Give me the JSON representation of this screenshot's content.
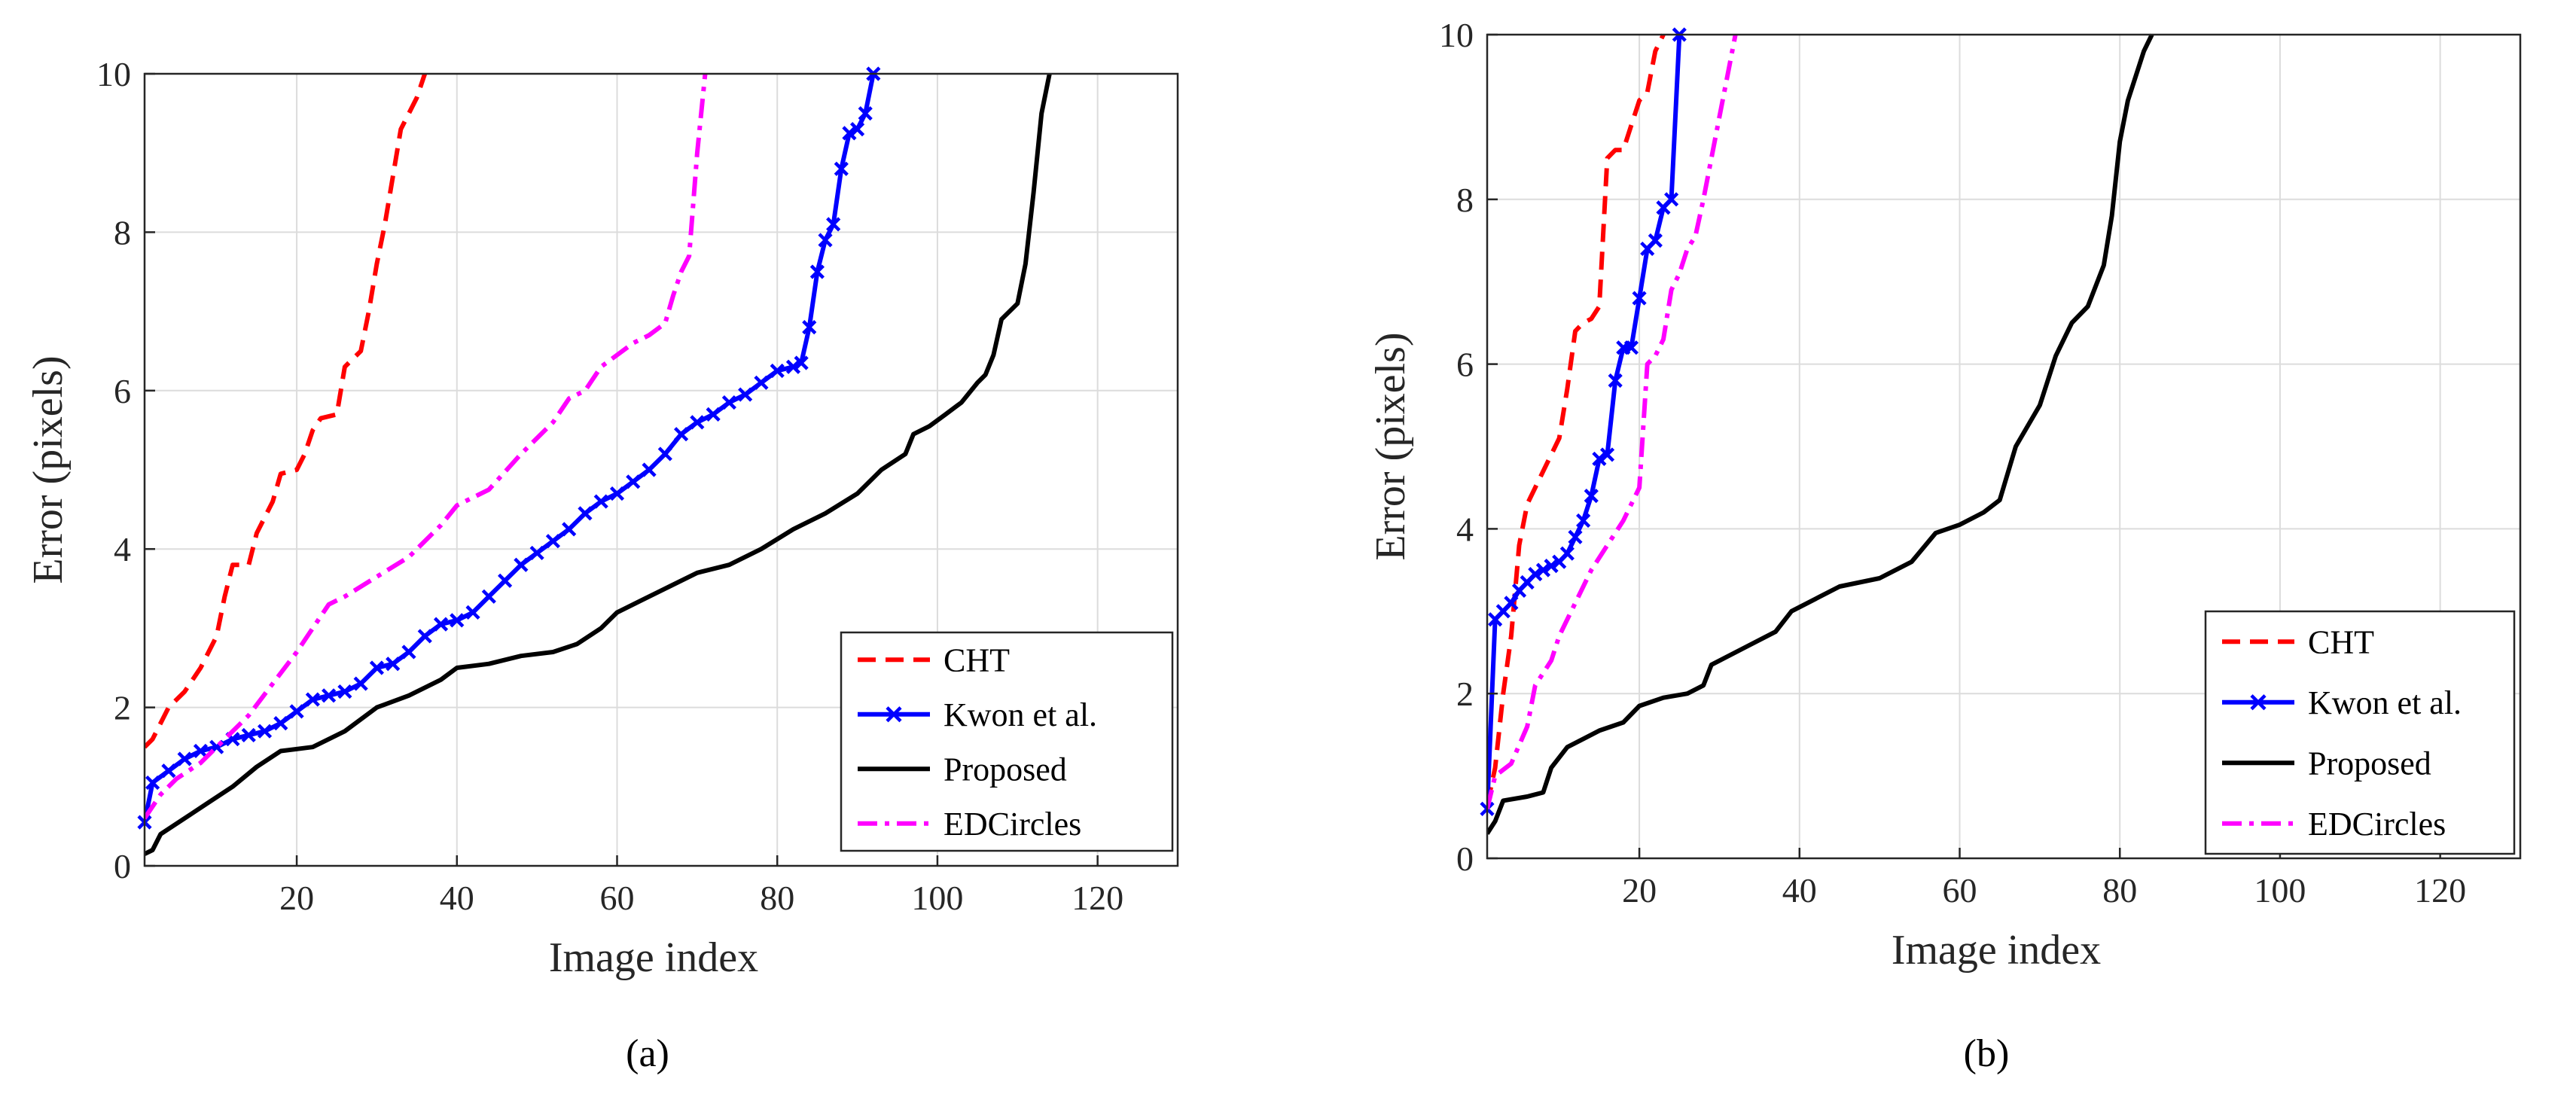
{
  "chart_data": [
    {
      "type": "line",
      "caption": "(a)",
      "xlabel": "Image index",
      "ylabel": "Error (pixels)",
      "xlim": [
        1,
        130
      ],
      "ylim": [
        0,
        10
      ],
      "xticks": [
        20,
        40,
        60,
        80,
        100,
        120
      ],
      "yticks": [
        0,
        2,
        4,
        6,
        8,
        10
      ],
      "grid": true,
      "legend_position": "bottom-right",
      "series": [
        {
          "name": "CHT",
          "style": "dashed",
          "color": "#ff0000",
          "marker": "none",
          "points": [
            [
              1,
              1.5
            ],
            [
              2,
              1.6
            ],
            [
              4,
              2.0
            ],
            [
              6,
              2.2
            ],
            [
              8,
              2.5
            ],
            [
              10,
              2.9
            ],
            [
              11,
              3.4
            ],
            [
              12,
              3.8
            ],
            [
              14,
              3.8
            ],
            [
              15,
              4.2
            ],
            [
              17,
              4.6
            ],
            [
              18,
              4.95
            ],
            [
              20,
              5.0
            ],
            [
              21,
              5.2
            ],
            [
              22,
              5.5
            ],
            [
              23,
              5.65
            ],
            [
              25,
              5.7
            ],
            [
              26,
              6.3
            ],
            [
              28,
              6.5
            ],
            [
              29,
              7.0
            ],
            [
              30,
              7.6
            ],
            [
              31,
              8.1
            ],
            [
              32,
              8.7
            ],
            [
              33,
              9.3
            ],
            [
              34,
              9.5
            ],
            [
              35,
              9.7
            ],
            [
              36,
              10.0
            ]
          ]
        },
        {
          "name": "Kwon et al.",
          "style": "solid",
          "color": "#0000ff",
          "marker": "x",
          "points": [
            [
              1,
              0.55
            ],
            [
              2,
              1.05
            ],
            [
              4,
              1.2
            ],
            [
              6,
              1.35
            ],
            [
              8,
              1.45
            ],
            [
              10,
              1.5
            ],
            [
              12,
              1.6
            ],
            [
              14,
              1.65
            ],
            [
              16,
              1.7
            ],
            [
              18,
              1.8
            ],
            [
              20,
              1.95
            ],
            [
              22,
              2.1
            ],
            [
              24,
              2.15
            ],
            [
              26,
              2.2
            ],
            [
              28,
              2.3
            ],
            [
              30,
              2.5
            ],
            [
              32,
              2.55
            ],
            [
              34,
              2.7
            ],
            [
              36,
              2.9
            ],
            [
              38,
              3.05
            ],
            [
              40,
              3.1
            ],
            [
              42,
              3.2
            ],
            [
              44,
              3.4
            ],
            [
              46,
              3.6
            ],
            [
              48,
              3.8
            ],
            [
              50,
              3.95
            ],
            [
              52,
              4.1
            ],
            [
              54,
              4.25
            ],
            [
              56,
              4.45
            ],
            [
              58,
              4.6
            ],
            [
              60,
              4.7
            ],
            [
              62,
              4.85
            ],
            [
              64,
              5.0
            ],
            [
              66,
              5.2
            ],
            [
              68,
              5.45
            ],
            [
              70,
              5.6
            ],
            [
              72,
              5.7
            ],
            [
              74,
              5.85
            ],
            [
              76,
              5.95
            ],
            [
              78,
              6.1
            ],
            [
              80,
              6.25
            ],
            [
              82,
              6.3
            ],
            [
              83,
              6.35
            ],
            [
              84,
              6.8
            ],
            [
              85,
              7.5
            ],
            [
              86,
              7.9
            ],
            [
              87,
              8.1
            ],
            [
              88,
              8.8
            ],
            [
              89,
              9.25
            ],
            [
              90,
              9.3
            ],
            [
              91,
              9.5
            ],
            [
              92,
              10.0
            ]
          ]
        },
        {
          "name": "Proposed",
          "style": "solid",
          "color": "#000000",
          "marker": "none",
          "points": [
            [
              1,
              0.15
            ],
            [
              2,
              0.2
            ],
            [
              3,
              0.4
            ],
            [
              6,
              0.6
            ],
            [
              9,
              0.8
            ],
            [
              12,
              1.0
            ],
            [
              15,
              1.25
            ],
            [
              18,
              1.45
            ],
            [
              22,
              1.5
            ],
            [
              26,
              1.7
            ],
            [
              30,
              2.0
            ],
            [
              34,
              2.15
            ],
            [
              38,
              2.35
            ],
            [
              40,
              2.5
            ],
            [
              44,
              2.55
            ],
            [
              48,
              2.65
            ],
            [
              52,
              2.7
            ],
            [
              55,
              2.8
            ],
            [
              58,
              3.0
            ],
            [
              60,
              3.2
            ],
            [
              63,
              3.35
            ],
            [
              66,
              3.5
            ],
            [
              70,
              3.7
            ],
            [
              74,
              3.8
            ],
            [
              78,
              4.0
            ],
            [
              82,
              4.25
            ],
            [
              86,
              4.45
            ],
            [
              90,
              4.7
            ],
            [
              93,
              5.0
            ],
            [
              96,
              5.2
            ],
            [
              97,
              5.45
            ],
            [
              99,
              5.55
            ],
            [
              101,
              5.7
            ],
            [
              103,
              5.85
            ],
            [
              105,
              6.1
            ],
            [
              106,
              6.2
            ],
            [
              107,
              6.45
            ],
            [
              108,
              6.9
            ],
            [
              110,
              7.1
            ],
            [
              111,
              7.6
            ],
            [
              112,
              8.5
            ],
            [
              113,
              9.5
            ],
            [
              114,
              10.0
            ]
          ]
        },
        {
          "name": "EDCircles",
          "style": "dashdot",
          "color": "#ff00ff",
          "marker": "none",
          "points": [
            [
              1,
              0.6
            ],
            [
              3,
              0.9
            ],
            [
              5,
              1.1
            ],
            [
              8,
              1.3
            ],
            [
              11,
              1.6
            ],
            [
              14,
              1.9
            ],
            [
              17,
              2.3
            ],
            [
              20,
              2.7
            ],
            [
              22,
              3.0
            ],
            [
              24,
              3.3
            ],
            [
              26,
              3.4
            ],
            [
              30,
              3.65
            ],
            [
              34,
              3.9
            ],
            [
              38,
              4.3
            ],
            [
              40,
              4.55
            ],
            [
              44,
              4.75
            ],
            [
              48,
              5.2
            ],
            [
              52,
              5.6
            ],
            [
              54,
              5.9
            ],
            [
              56,
              6.0
            ],
            [
              58,
              6.3
            ],
            [
              60,
              6.45
            ],
            [
              62,
              6.6
            ],
            [
              64,
              6.7
            ],
            [
              66,
              6.85
            ],
            [
              67,
              7.2
            ],
            [
              68,
              7.5
            ],
            [
              69,
              7.7
            ],
            [
              70,
              9.0
            ],
            [
              71,
              10.0
            ]
          ]
        }
      ]
    },
    {
      "type": "line",
      "caption": "(b)",
      "xlabel": "Image index",
      "ylabel": "Error (pixels)",
      "xlim": [
        1,
        130
      ],
      "ylim": [
        0,
        10
      ],
      "xticks": [
        20,
        40,
        60,
        80,
        100,
        120
      ],
      "yticks": [
        0,
        2,
        4,
        6,
        8,
        10
      ],
      "grid": true,
      "legend_position": "bottom-right",
      "series": [
        {
          "name": "CHT",
          "style": "dashed",
          "color": "#ff0000",
          "marker": "none",
          "points": [
            [
              1,
              0.65
            ],
            [
              2,
              1.1
            ],
            [
              3,
              2.0
            ],
            [
              4,
              2.7
            ],
            [
              5,
              3.8
            ],
            [
              6,
              4.3
            ],
            [
              7,
              4.5
            ],
            [
              8,
              4.7
            ],
            [
              9,
              4.9
            ],
            [
              10,
              5.1
            ],
            [
              11,
              5.7
            ],
            [
              12,
              6.4
            ],
            [
              13,
              6.5
            ],
            [
              14,
              6.55
            ],
            [
              15,
              6.7
            ],
            [
              16,
              8.5
            ],
            [
              17,
              8.6
            ],
            [
              18,
              8.6
            ],
            [
              19,
              8.9
            ],
            [
              20,
              9.2
            ],
            [
              21,
              9.3
            ],
            [
              22,
              9.8
            ],
            [
              23,
              10.0
            ]
          ]
        },
        {
          "name": "Kwon et al.",
          "style": "solid",
          "color": "#0000ff",
          "marker": "x",
          "points": [
            [
              1,
              0.6
            ],
            [
              2,
              2.9
            ],
            [
              3,
              3.0
            ],
            [
              4,
              3.1
            ],
            [
              5,
              3.25
            ],
            [
              6,
              3.35
            ],
            [
              7,
              3.45
            ],
            [
              8,
              3.5
            ],
            [
              9,
              3.55
            ],
            [
              10,
              3.6
            ],
            [
              11,
              3.7
            ],
            [
              12,
              3.9
            ],
            [
              13,
              4.1
            ],
            [
              14,
              4.4
            ],
            [
              15,
              4.85
            ],
            [
              16,
              4.9
            ],
            [
              17,
              5.8
            ],
            [
              18,
              6.2
            ],
            [
              19,
              6.2
            ],
            [
              20,
              6.8
            ],
            [
              21,
              7.4
            ],
            [
              22,
              7.5
            ],
            [
              23,
              7.9
            ],
            [
              24,
              8.0
            ],
            [
              25,
              10.0
            ]
          ]
        },
        {
          "name": "Proposed",
          "style": "solid",
          "color": "#000000",
          "marker": "none",
          "points": [
            [
              1,
              0.3
            ],
            [
              2,
              0.45
            ],
            [
              3,
              0.7
            ],
            [
              6,
              0.75
            ],
            [
              8,
              0.8
            ],
            [
              9,
              1.1
            ],
            [
              11,
              1.35
            ],
            [
              13,
              1.45
            ],
            [
              15,
              1.55
            ],
            [
              18,
              1.65
            ],
            [
              20,
              1.85
            ],
            [
              23,
              1.95
            ],
            [
              26,
              2.0
            ],
            [
              28,
              2.1
            ],
            [
              29,
              2.35
            ],
            [
              33,
              2.55
            ],
            [
              37,
              2.75
            ],
            [
              39,
              3.0
            ],
            [
              42,
              3.15
            ],
            [
              45,
              3.3
            ],
            [
              50,
              3.4
            ],
            [
              54,
              3.6
            ],
            [
              57,
              3.95
            ],
            [
              60,
              4.05
            ],
            [
              63,
              4.2
            ],
            [
              65,
              4.35
            ],
            [
              67,
              5.0
            ],
            [
              70,
              5.5
            ],
            [
              72,
              6.1
            ],
            [
              74,
              6.5
            ],
            [
              76,
              6.7
            ],
            [
              78,
              7.2
            ],
            [
              79,
              7.8
            ],
            [
              80,
              8.7
            ],
            [
              81,
              9.2
            ],
            [
              83,
              9.8
            ],
            [
              84,
              10.0
            ]
          ]
        },
        {
          "name": "EDCircles",
          "style": "dashdot",
          "color": "#ff00ff",
          "marker": "none",
          "points": [
            [
              1,
              0.6
            ],
            [
              2,
              1.0
            ],
            [
              4,
              1.15
            ],
            [
              6,
              1.6
            ],
            [
              7,
              2.1
            ],
            [
              9,
              2.4
            ],
            [
              10,
              2.7
            ],
            [
              12,
              3.1
            ],
            [
              14,
              3.5
            ],
            [
              16,
              3.8
            ],
            [
              18,
              4.1
            ],
            [
              20,
              4.5
            ],
            [
              21,
              6.0
            ],
            [
              22,
              6.1
            ],
            [
              23,
              6.3
            ],
            [
              24,
              6.9
            ],
            [
              25,
              7.1
            ],
            [
              26,
              7.4
            ],
            [
              27,
              7.55
            ],
            [
              28,
              8.0
            ],
            [
              29,
              8.5
            ],
            [
              30,
              9.0
            ],
            [
              31,
              9.5
            ],
            [
              32,
              10.0
            ]
          ]
        }
      ]
    }
  ]
}
